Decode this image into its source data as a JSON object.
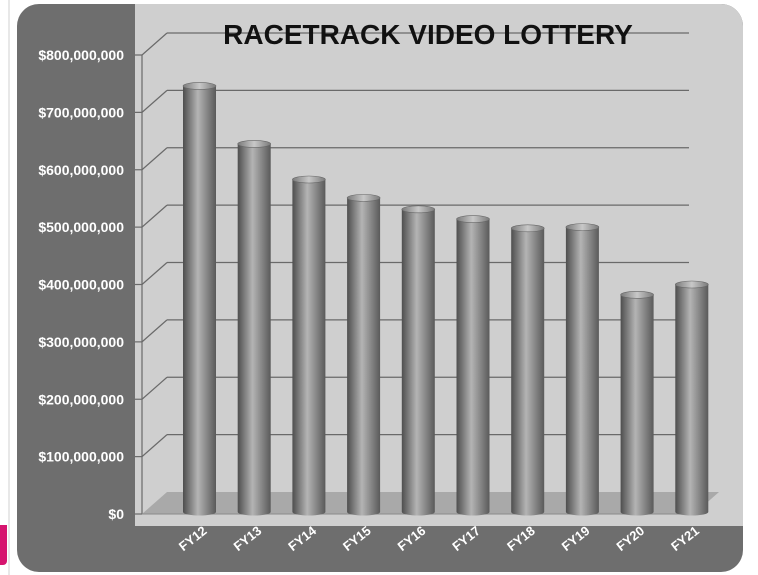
{
  "colors": {
    "frame": "#6e6e6e",
    "plot_bg": "#cfcfcf",
    "floor": "#a9a9a9",
    "bar_dark": "#4e4e4e",
    "bar_light": "#b4b4b4",
    "gridline": "#6a6a6a",
    "title": "#111111",
    "tick_text": "#ffffff",
    "accent_strip": "#d6156f"
  },
  "chart_data": {
    "type": "bar",
    "style": "3d-cylinder",
    "title": "RACETRACK VIDEO LOTTERY",
    "xlabel": "",
    "ylabel": "",
    "categories": [
      "FY12",
      "FY13",
      "FY14",
      "FY15",
      "FY16",
      "FY17",
      "FY18",
      "FY19",
      "FY20",
      "FY21"
    ],
    "values": [
      746000000,
      645000000,
      583000000,
      551000000,
      531000000,
      514000000,
      498000000,
      500000000,
      382000000,
      400000000
    ],
    "ylim": [
      0,
      800000000
    ],
    "yticks": [
      0,
      100000000,
      200000000,
      300000000,
      400000000,
      500000000,
      600000000,
      700000000,
      800000000
    ],
    "ytick_labels": [
      "$0",
      "$100,000,000",
      "$200,000,000",
      "$300,000,000",
      "$400,000,000",
      "$500,000,000",
      "$600,000,000",
      "$700,000,000",
      "$800,000,000"
    ],
    "grid": true,
    "legend": "none"
  }
}
